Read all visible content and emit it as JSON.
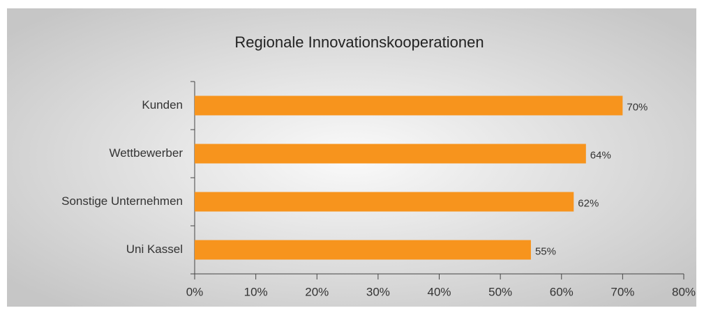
{
  "chart_data": {
    "type": "hbar",
    "title": "Regionale Innovationskooperationen",
    "categories": [
      "Kunden",
      "Wettbewerber",
      "Sonstige Unternehmen",
      "Uni Kassel"
    ],
    "values": [
      70,
      64,
      62,
      55
    ],
    "value_labels": [
      "70%",
      "64%",
      "62%",
      "55%"
    ],
    "color": "#f7941d",
    "xlim": [
      0,
      80
    ],
    "xticks": [
      {
        "value": 0,
        "label": "0%"
      },
      {
        "value": 10,
        "label": "10%"
      },
      {
        "value": 20,
        "label": "20%"
      },
      {
        "value": 30,
        "label": "30%"
      },
      {
        "value": 40,
        "label": "40%"
      },
      {
        "value": 50,
        "label": "50%"
      },
      {
        "value": 60,
        "label": "60%"
      },
      {
        "value": 70,
        "label": "70%"
      },
      {
        "value": 80,
        "label": "80%"
      }
    ],
    "grid": false
  }
}
